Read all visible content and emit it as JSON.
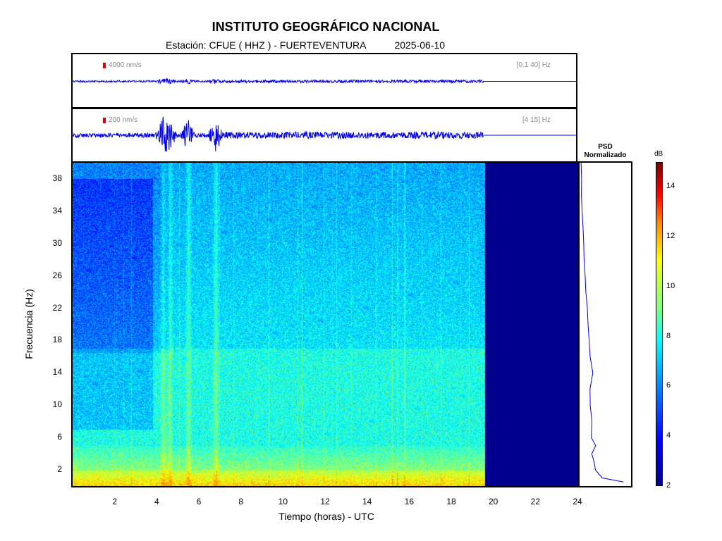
{
  "header": {
    "title": "INSTITUTO GEOGRÁFICO NACIONAL",
    "station_line": "Estación:  CFUE ( HHZ ) - FUERTEVENTURA",
    "date": "2025-06-10"
  },
  "traces": [
    {
      "scale": "4000 nm/s",
      "band": "[0.1 40] Hz"
    },
    {
      "scale": "200 nm/s",
      "band": "[4 15] Hz"
    }
  ],
  "psd_title_line1": "PSD",
  "psd_title_line2": "Normalizado",
  "colorbar": {
    "unit": "dB",
    "ticks": [
      "2",
      "4",
      "6",
      "8",
      "10",
      "12",
      "14"
    ],
    "range": [
      2,
      15
    ]
  },
  "colors": {
    "trace": "#0000e6",
    "scale_mark": "#e00000",
    "no_data": "#00008f"
  },
  "chart_data": {
    "type": "heatmap",
    "title": "INSTITUTO GEOGRÁFICO NACIONAL",
    "xlabel": "Tiempo (horas) - UTC",
    "ylabel": "Frecuencia  (Hz)",
    "xlim": [
      0,
      24
    ],
    "ylim": [
      0,
      40
    ],
    "x_ticks": [
      "2",
      "4",
      "6",
      "8",
      "10",
      "12",
      "14",
      "16",
      "18",
      "20",
      "22",
      "24"
    ],
    "y_ticks": [
      "2",
      "6",
      "10",
      "14",
      "18",
      "22",
      "26",
      "30",
      "34",
      "38"
    ],
    "data_end_hour": 19.6,
    "event_times_hours": [
      4.3,
      4.6,
      5.5,
      6.8
    ],
    "psd_profile": {
      "freq_hz": [
        0.5,
        1,
        2,
        3,
        4,
        5,
        6,
        8,
        10,
        12,
        14,
        16,
        18,
        20,
        22,
        24,
        26,
        28,
        30,
        32,
        34,
        36,
        38,
        40
      ],
      "normalized": [
        0.9,
        0.45,
        0.3,
        0.28,
        0.24,
        0.3,
        0.23,
        0.22,
        0.2,
        0.2,
        0.26,
        0.2,
        0.16,
        0.15,
        0.12,
        0.1,
        0.1,
        0.08,
        0.05,
        0.04,
        0.03,
        0.02,
        0.01,
        0.0
      ]
    }
  }
}
